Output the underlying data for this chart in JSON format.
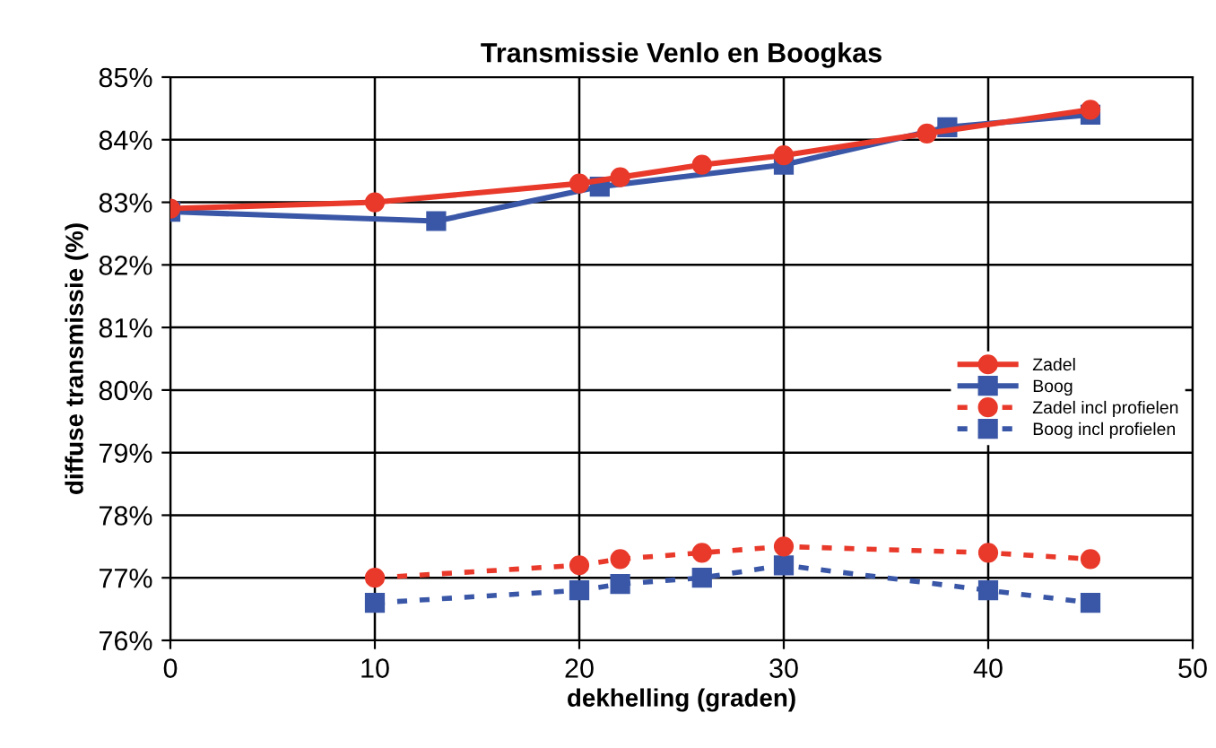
{
  "chart_data": {
    "type": "line",
    "title": "Transmissie Venlo en Boogkas",
    "xlabel": "dekhelling (graden)",
    "ylabel": "diffuse transmissie (%)",
    "xlim": [
      0,
      50
    ],
    "xticks": [
      0,
      10,
      20,
      30,
      40,
      50
    ],
    "ylim": [
      76,
      85
    ],
    "yticks": [
      {
        "value": 76,
        "label": "76%"
      },
      {
        "value": 77,
        "label": "77%"
      },
      {
        "value": 78,
        "label": "78%"
      },
      {
        "value": 79,
        "label": "79%"
      },
      {
        "value": 80,
        "label": "80%"
      },
      {
        "value": 81,
        "label": "81%"
      },
      {
        "value": 82,
        "label": "82%"
      },
      {
        "value": 83,
        "label": "83%"
      },
      {
        "value": 84,
        "label": "84%"
      },
      {
        "value": 85,
        "label": "85%"
      }
    ],
    "grid": true,
    "legend": "right",
    "series": [
      {
        "name": "Zadel",
        "color": "#e8392a",
        "marker": "circle",
        "line_style": "solid",
        "x": [
          0,
          10,
          20,
          22,
          26,
          30,
          37,
          45
        ],
        "values": [
          82.9,
          83.0,
          83.3,
          83.4,
          83.6,
          83.75,
          84.1,
          84.48
        ]
      },
      {
        "name": "Boog",
        "color": "#3a57a7",
        "marker": "square",
        "line_style": "solid",
        "x": [
          0,
          13,
          21,
          30,
          38,
          45
        ],
        "values": [
          82.85,
          82.7,
          83.25,
          83.6,
          84.2,
          84.4
        ]
      },
      {
        "name": "Zadel incl profielen",
        "color": "#e8392a",
        "marker": "circle",
        "line_style": "dotted",
        "x": [
          10,
          20,
          22,
          26,
          30,
          40,
          45
        ],
        "values": [
          77.0,
          77.2,
          77.3,
          77.4,
          77.5,
          77.4,
          77.3
        ]
      },
      {
        "name": "Boog incl profielen",
        "color": "#3a57a7",
        "marker": "square",
        "line_style": "dotted",
        "x": [
          10,
          20,
          22,
          26,
          30,
          40,
          45
        ],
        "values": [
          76.6,
          76.8,
          76.9,
          77.0,
          77.2,
          76.8,
          76.6
        ]
      }
    ]
  }
}
